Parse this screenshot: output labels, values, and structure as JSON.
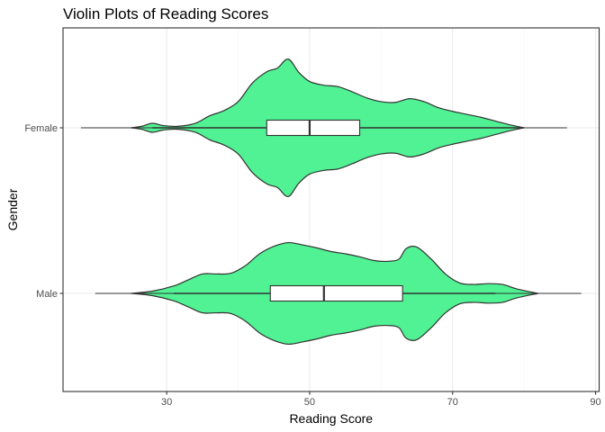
{
  "chart_data": {
    "type": "violin",
    "orientation": "horizontal",
    "title": "Violin Plots of Reading Scores",
    "xlabel": "Reading Score",
    "ylabel": "Gender",
    "xlim": [
      15.5,
      90.5
    ],
    "x_ticks": [
      30,
      50,
      70,
      90
    ],
    "x_tick_labels": [
      "30",
      "50",
      "70",
      "90"
    ],
    "categories": [
      "Female",
      "Male"
    ],
    "grid": true,
    "fill_color": "#50f293",
    "outline_color": "#333333",
    "box_color": "#ffffff",
    "series": [
      {
        "category": "Female",
        "violin_range": [
          25,
          80
        ],
        "density": [
          [
            25,
            0.0
          ],
          [
            26.5,
            0.02
          ],
          [
            28,
            0.06
          ],
          [
            29.5,
            0.03
          ],
          [
            31.5,
            0.02
          ],
          [
            34,
            0.06
          ],
          [
            36,
            0.16
          ],
          [
            38,
            0.23
          ],
          [
            40,
            0.35
          ],
          [
            42,
            0.6
          ],
          [
            44,
            0.75
          ],
          [
            45.5,
            0.8
          ],
          [
            47,
            0.92
          ],
          [
            48.5,
            0.74
          ],
          [
            50,
            0.62
          ],
          [
            52,
            0.57
          ],
          [
            54,
            0.55
          ],
          [
            56,
            0.48
          ],
          [
            58,
            0.4
          ],
          [
            60,
            0.35
          ],
          [
            62,
            0.34
          ],
          [
            64,
            0.39
          ],
          [
            66,
            0.35
          ],
          [
            68,
            0.27
          ],
          [
            70,
            0.22
          ],
          [
            72,
            0.18
          ],
          [
            74,
            0.14
          ],
          [
            76,
            0.09
          ],
          [
            78,
            0.04
          ],
          [
            80,
            0.0
          ]
        ],
        "whiskers": [
          28,
          80
        ],
        "box": {
          "q1": 44,
          "median": 50,
          "q3": 57
        },
        "line_range": [
          18,
          86
        ]
      },
      {
        "category": "Male",
        "violin_range": [
          25,
          82
        ],
        "density": [
          [
            25,
            0.0
          ],
          [
            28,
            0.03
          ],
          [
            31,
            0.1
          ],
          [
            33,
            0.18
          ],
          [
            35,
            0.26
          ],
          [
            37,
            0.26
          ],
          [
            39,
            0.27
          ],
          [
            41,
            0.37
          ],
          [
            43,
            0.53
          ],
          [
            45,
            0.63
          ],
          [
            47,
            0.68
          ],
          [
            49,
            0.65
          ],
          [
            51,
            0.61
          ],
          [
            53,
            0.56
          ],
          [
            55,
            0.53
          ],
          [
            57,
            0.49
          ],
          [
            59,
            0.44
          ],
          [
            61,
            0.43
          ],
          [
            62.5,
            0.46
          ],
          [
            63.5,
            0.6
          ],
          [
            65,
            0.62
          ],
          [
            67,
            0.46
          ],
          [
            69,
            0.26
          ],
          [
            71,
            0.14
          ],
          [
            73,
            0.12
          ],
          [
            75,
            0.13
          ],
          [
            77,
            0.12
          ],
          [
            79,
            0.06
          ],
          [
            82,
            0.0
          ]
        ],
        "whiskers": [
          31,
          76
        ],
        "box": {
          "q1": 44.5,
          "median": 52,
          "q3": 63
        },
        "line_range": [
          20,
          88
        ]
      }
    ]
  }
}
